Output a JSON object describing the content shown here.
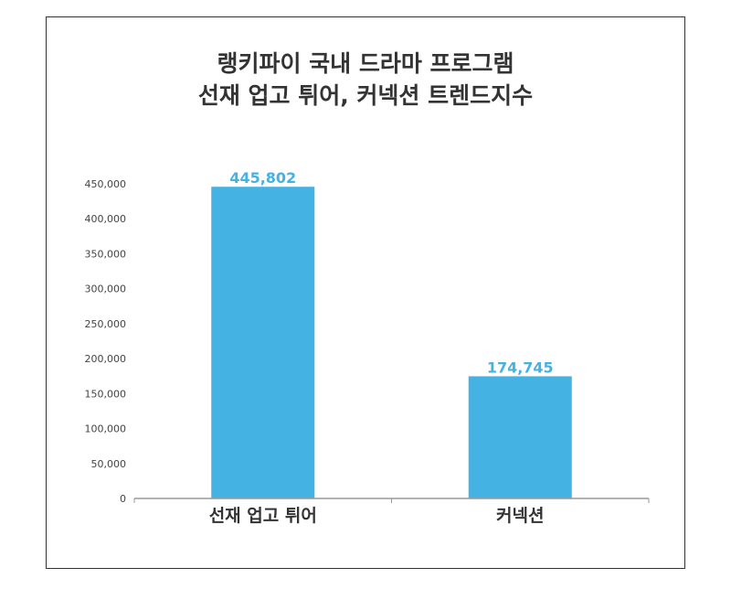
{
  "chart_data": {
    "type": "bar",
    "title_lines": [
      "랭키파이 국내 드라마 프로그램",
      "선재 업고 튀어, 커넥션 트렌드지수"
    ],
    "categories": [
      "선재 업고 튀어",
      "커넥션"
    ],
    "values": [
      445802,
      174745
    ],
    "value_labels": [
      "445,802",
      "174,745"
    ],
    "ylim": [
      0,
      450000
    ],
    "yticks": [
      0,
      50000,
      100000,
      150000,
      200000,
      250000,
      300000,
      350000,
      400000,
      450000
    ],
    "ytick_labels": [
      "0",
      "50,000",
      "100,000",
      "150,000",
      "200,000",
      "250,000",
      "300,000",
      "350,000",
      "400,000",
      "450,000"
    ],
    "xlabel": "",
    "ylabel": "",
    "grid": false,
    "legend": "none"
  },
  "colors": {
    "bar": "#44b2e3",
    "value_label": "#44b2e3",
    "axis": "#999999"
  }
}
